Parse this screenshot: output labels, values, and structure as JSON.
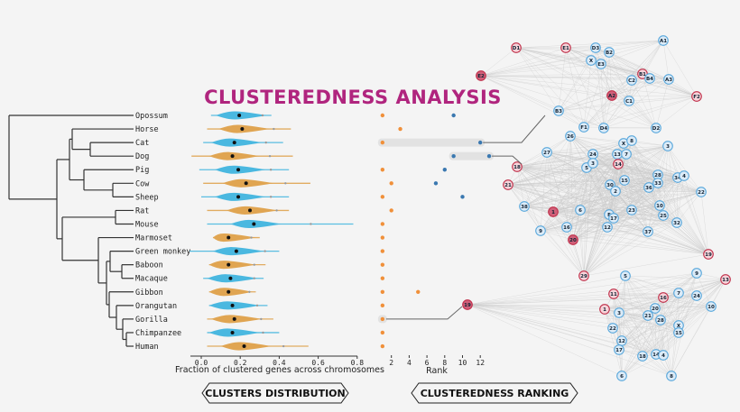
{
  "title": "CLUSTEREDNESS ANALYSIS",
  "colors": {
    "title": "#b0257e",
    "violin_blue": "#4ab8e0",
    "violin_orange": "#e0a552",
    "rank_orange": "#f0903a",
    "rank_blue": "#3a78b0",
    "node_red": "#c0304a",
    "node_blue": "#5aa8dc"
  },
  "chart_data": [
    {
      "type": "violin",
      "xlabel": "Fraction of clustered genes across chromosomes",
      "xlim": [
        -0.05,
        0.82
      ],
      "xticks": [
        "0.0",
        "0.2",
        "0.4",
        "0.6",
        "0.8"
      ],
      "xtick_values": [
        0,
        0.2,
        0.4,
        0.6,
        0.8
      ],
      "species": [
        "Opossum",
        "Horse",
        "Cat",
        "Dog",
        "Pig",
        "Cow",
        "Sheep",
        "Rat",
        "Mouse",
        "Marmoset",
        "Green monkey",
        "Baboon",
        "Macaque",
        "Gibbon",
        "Orangutan",
        "Gorilla",
        "Chimpanzee",
        "Human"
      ],
      "median": [
        0.195,
        0.21,
        0.17,
        0.16,
        0.19,
        0.23,
        0.19,
        0.25,
        0.27,
        0.14,
        0.18,
        0.14,
        0.15,
        0.14,
        0.16,
        0.17,
        0.16,
        0.22
      ],
      "min": [
        0.05,
        0.03,
        0.01,
        -0.05,
        -0.01,
        0.01,
        0.0,
        0.03,
        0.03,
        0.06,
        -0.06,
        0.04,
        0.01,
        0.04,
        0.04,
        0.03,
        0.03,
        0.03
      ],
      "max": [
        0.36,
        0.46,
        0.42,
        0.47,
        0.45,
        0.56,
        0.45,
        0.45,
        0.78,
        0.3,
        0.4,
        0.33,
        0.32,
        0.28,
        0.34,
        0.37,
        0.4,
        0.55
      ],
      "series_color": [
        "blue",
        "orange",
        "blue",
        "orange",
        "blue",
        "orange",
        "blue",
        "orange",
        "blue",
        "orange",
        "blue",
        "orange",
        "blue",
        "orange",
        "blue",
        "orange",
        "blue",
        "orange"
      ]
    },
    {
      "type": "scatter",
      "xlabel": "Rank",
      "xticks": [
        "2",
        "4",
        "6",
        "8",
        "10",
        "12"
      ],
      "xtick_values": [
        2,
        4,
        6,
        8,
        10,
        12
      ],
      "orange_ranks": [
        [
          1
        ],
        [
          3
        ],
        [
          1
        ],
        [],
        [
          1
        ],
        [
          2
        ],
        [
          1
        ],
        [
          2
        ],
        [
          1
        ],
        [
          1
        ],
        [
          1
        ],
        [
          1
        ],
        [
          1
        ],
        [
          1,
          5
        ],
        [
          1
        ],
        [
          1
        ],
        [
          1
        ],
        [
          1
        ]
      ],
      "blue_ranks": [
        [
          9
        ],
        [],
        [
          12
        ],
        [
          9,
          13
        ],
        [
          8
        ],
        [
          7
        ],
        [
          10
        ],
        [],
        [],
        [],
        [],
        [],
        [],
        [],
        [],
        [],
        [],
        []
      ],
      "highlighted_ranges": [
        {
          "row": "Cat",
          "from": 1,
          "to": 12
        },
        {
          "row": "Dog",
          "from": 9,
          "to": 13
        },
        {
          "row": "Gorilla",
          "from": 1,
          "to": 1
        }
      ]
    }
  ],
  "network": {
    "clusters": [
      {
        "nodes": [
          {
            "l": "D1",
            "r": 1
          },
          {
            "l": "E1",
            "r": 1
          },
          {
            "l": "D3",
            "r": 0
          },
          {
            "l": "B2",
            "r": 0
          },
          {
            "l": "X",
            "r": 0
          },
          {
            "l": "E3",
            "r": 0
          },
          {
            "l": "A1",
            "r": 0
          },
          {
            "l": "E2",
            "r": 2
          },
          {
            "l": "B1",
            "r": 1
          },
          {
            "l": "B4",
            "r": 0
          },
          {
            "l": "C2",
            "r": 0
          },
          {
            "l": "A3",
            "r": 0
          },
          {
            "l": "A2",
            "r": 2
          },
          {
            "l": "C1",
            "r": 0
          },
          {
            "l": "F2",
            "r": 1
          },
          {
            "l": "B3",
            "r": 0
          },
          {
            "l": "F1",
            "r": 0
          },
          {
            "l": "D4",
            "r": 0
          },
          {
            "l": "D2",
            "r": 0
          }
        ]
      },
      {
        "nodes": [
          {
            "l": "26",
            "r": 0
          },
          {
            "l": "27",
            "r": 0
          },
          {
            "l": "24",
            "r": 0
          },
          {
            "l": "13",
            "r": 0
          },
          {
            "l": "7",
            "r": 0
          },
          {
            "l": "X",
            "r": 0
          },
          {
            "l": "8",
            "r": 0
          },
          {
            "l": "3",
            "r": 0
          },
          {
            "l": "18",
            "r": 1
          },
          {
            "l": "5",
            "r": 0
          },
          {
            "l": "3",
            "r": 0
          },
          {
            "l": "14",
            "r": 1
          },
          {
            "l": "21",
            "r": 1
          },
          {
            "l": "28",
            "r": 0
          },
          {
            "l": "33",
            "r": 0
          },
          {
            "l": "34",
            "r": 0
          },
          {
            "l": "4",
            "r": 0
          },
          {
            "l": "15",
            "r": 0
          },
          {
            "l": "30",
            "r": 0
          },
          {
            "l": "2",
            "r": 0
          },
          {
            "l": "36",
            "r": 0
          },
          {
            "l": "22",
            "r": 0
          },
          {
            "l": "38",
            "r": 0
          },
          {
            "l": "1",
            "r": 2
          },
          {
            "l": "6",
            "r": 0
          },
          {
            "l": "23",
            "r": 0
          },
          {
            "l": "10",
            "r": 0
          },
          {
            "l": "25",
            "r": 0
          },
          {
            "l": "F",
            "r": 0
          },
          {
            "l": "17",
            "r": 0
          },
          {
            "l": "12",
            "r": 0
          },
          {
            "l": "32",
            "r": 0
          },
          {
            "l": "16",
            "r": 0
          },
          {
            "l": "9",
            "r": 0
          },
          {
            "l": "37",
            "r": 0
          },
          {
            "l": "20",
            "r": 2
          },
          {
            "l": "19",
            "r": 1
          },
          {
            "l": "29",
            "r": 1
          }
        ]
      },
      {
        "nodes": [
          {
            "l": "19",
            "r": 2
          },
          {
            "l": "5",
            "r": 0
          },
          {
            "l": "9",
            "r": 0
          },
          {
            "l": "13",
            "r": 1
          },
          {
            "l": "11",
            "r": 1
          },
          {
            "l": "16",
            "r": 1
          },
          {
            "l": "7",
            "r": 0
          },
          {
            "l": "24",
            "r": 0
          },
          {
            "l": "20",
            "r": 0
          },
          {
            "l": "1",
            "r": 1
          },
          {
            "l": "3",
            "r": 0
          },
          {
            "l": "10",
            "r": 0
          },
          {
            "l": "21",
            "r": 0
          },
          {
            "l": "28",
            "r": 0
          },
          {
            "l": "22",
            "r": 0
          },
          {
            "l": "X",
            "r": 0
          },
          {
            "l": "15",
            "r": 0
          },
          {
            "l": "12",
            "r": 0
          },
          {
            "l": "17",
            "r": 0
          },
          {
            "l": "18",
            "r": 0
          },
          {
            "l": "14",
            "r": 0
          },
          {
            "l": "4",
            "r": 0
          },
          {
            "l": "6",
            "r": 0
          },
          {
            "l": "8",
            "r": 0
          }
        ]
      }
    ]
  },
  "footer": {
    "left": "CLUSTERS DISTRIBUTION",
    "right": "CLUSTEREDNESS RANKING"
  }
}
